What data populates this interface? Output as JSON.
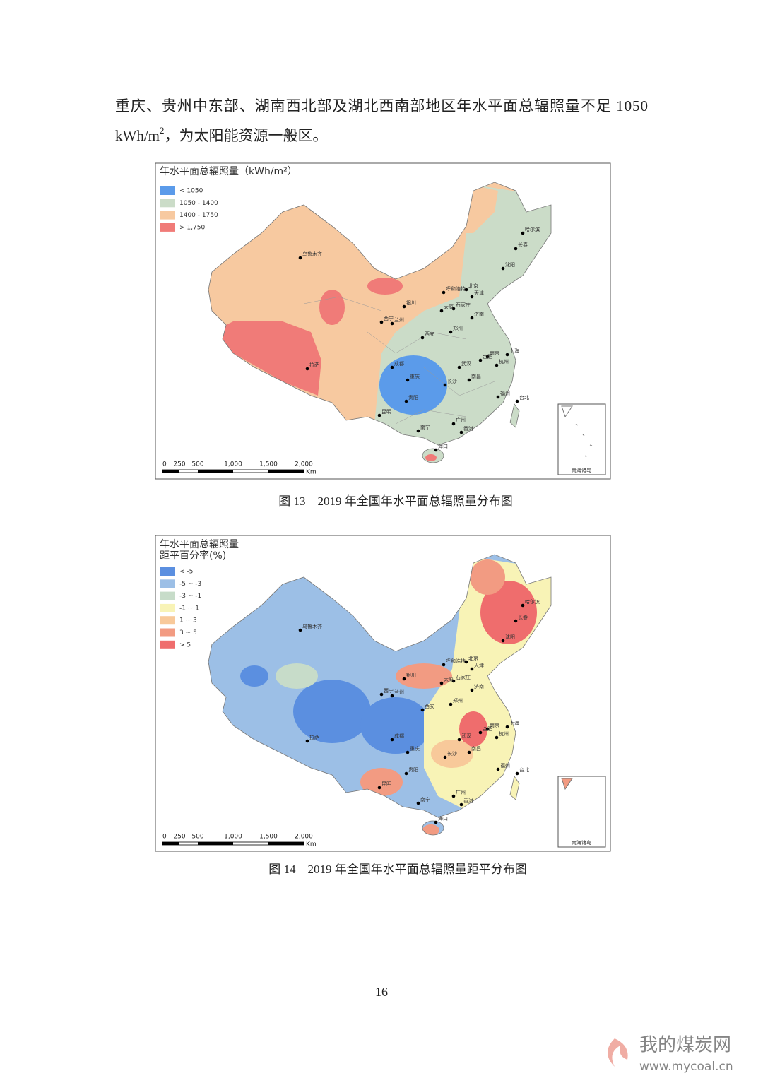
{
  "paragraph": {
    "line1": "重庆、贵州中东部、湖南西北部及湖北西南部地区年水平面总辐照量不足 1050",
    "line2_a": "kWh/m",
    "line2_sup": "2",
    "line2_b": "，为太阳能资源一般区。"
  },
  "figures": [
    {
      "legend_title": "年水平面总辐照量（kWh/m²）",
      "legend": [
        {
          "label": "< 1050",
          "color": "#5b9bea"
        },
        {
          "label": "1050 - 1400",
          "color": "#cbdcc8"
        },
        {
          "label": "1400 - 1750",
          "color": "#f7c9a0"
        },
        {
          "label": "> 1,750",
          "color": "#f07b78"
        }
      ],
      "scale": [
        "0",
        "250",
        "500",
        "1,000",
        "1,500",
        "2,000"
      ],
      "scale_unit": "Km",
      "inset_label": "南海诸岛",
      "cities": [
        "乌鲁木齐",
        "拉萨",
        "哈尔滨",
        "长春",
        "沈阳",
        "呼和浩特",
        "北京",
        "天津",
        "石家庄",
        "银川",
        "兰州",
        "西宁",
        "太原",
        "济南",
        "西安",
        "郑州",
        "南京",
        "上海",
        "合肥",
        "杭州",
        "武汉",
        "成都",
        "重庆",
        "长沙",
        "南昌",
        "贵阳",
        "福州",
        "台北",
        "昆明",
        "南宁",
        "广州",
        "香港",
        "海口"
      ],
      "caption": "图 13　2019 年全国年水平面总辐照量分布图"
    },
    {
      "legend_title": [
        "年水平面总辐照量",
        "距平百分率(%)"
      ],
      "legend": [
        {
          "label": "< -5",
          "color": "#5b8fe0"
        },
        {
          "label": "-5 ~ -3",
          "color": "#9cbfe6"
        },
        {
          "label": "-3 ~ -1",
          "color": "#c7dcc9"
        },
        {
          "label": "-1 ~ 1",
          "color": "#f8f3b6"
        },
        {
          "label": "1 ~ 3",
          "color": "#f8c99a"
        },
        {
          "label": "3 ~ 5",
          "color": "#f29b82"
        },
        {
          "label": "> 5",
          "color": "#ef6d6d"
        }
      ],
      "scale": [
        "0",
        "250",
        "500",
        "1,000",
        "1,500",
        "2,000"
      ],
      "scale_unit": "Km",
      "inset_label": "南海诸岛",
      "cities": [
        "乌鲁木齐",
        "拉萨",
        "哈尔滨",
        "长春",
        "沈阳",
        "呼和浩特",
        "北京",
        "天津",
        "石家庄",
        "银川",
        "兰州",
        "西宁",
        "太原",
        "济南",
        "西安",
        "郑州",
        "南京",
        "上海",
        "合肥",
        "杭州",
        "武汉",
        "成都",
        "重庆",
        "长沙",
        "南昌",
        "贵阳",
        "福州",
        "台北",
        "昆明",
        "南宁",
        "广州",
        "香港",
        "海口"
      ],
      "caption": "图 14　2019 年全国年水平面总辐照量距平分布图"
    }
  ],
  "page_number": "16",
  "watermark": {
    "name": "我的煤炭网",
    "url": "www.mycoal.cn"
  }
}
